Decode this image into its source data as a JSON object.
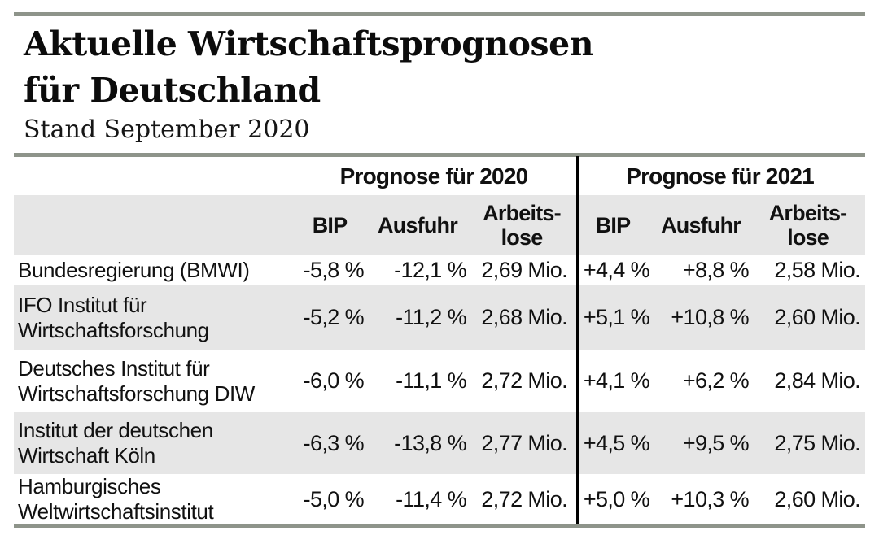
{
  "header": {
    "title_line1": "Aktuelle Wirtschaftsprognosen",
    "title_line2": "für Deutschland",
    "subtitle": "Stand September 2020"
  },
  "table_headers": {
    "group_2020": "Prognose für 2020",
    "group_2021": "Prognose für 2021",
    "bip": "BIP",
    "ausfuhr": "Ausfuhr",
    "arbeitslose": "Arbeits-\nlose"
  },
  "chart_data": {
    "type": "table",
    "title": "Aktuelle Wirtschaftsprognosen für Deutschland",
    "subtitle": "Stand September 2020",
    "column_groups": [
      "Prognose für 2020",
      "Prognose für 2021"
    ],
    "columns": [
      "BIP",
      "Ausfuhr",
      "Arbeitslose",
      "BIP",
      "Ausfuhr",
      "Arbeitslose"
    ],
    "rows": [
      {
        "institution": "Bundesregierung (BMWI)",
        "values": [
          "-5,8 %",
          "-12,1 %",
          "2,69 Mio.",
          "+4,4 %",
          "+8,8 %",
          "2,58 Mio."
        ]
      },
      {
        "institution": "IFO Institut für\nWirtschaftsforschung",
        "values": [
          "-5,2 %",
          "-11,2 %",
          "2,68 Mio.",
          "+5,1 %",
          "+10,8 %",
          "2,60 Mio."
        ]
      },
      {
        "institution": "Deutsches Institut für\nWirtschaftsforschung DIW",
        "values": [
          "-6,0 %",
          "-11,1 %",
          "2,72 Mio.",
          "+4,1 %",
          "+6,2 %",
          "2,84 Mio."
        ]
      },
      {
        "institution": "Institut der deutschen\nWirtschaft Köln",
        "values": [
          "-6,3 %",
          "-13,8 %",
          "2,77 Mio.",
          "+4,5 %",
          "+9,5 %",
          "2,75 Mio."
        ]
      },
      {
        "institution": "Hamburgisches\nWeltwirtschaftsinstitut",
        "values": [
          "-5,0 %",
          "-11,4 %",
          "2,72 Mio.",
          "+5,0 %",
          "+10,3 %",
          "2,60 Mio."
        ]
      }
    ]
  },
  "colors": {
    "rule": "#8e948a",
    "row_alt": "#e6e6e6",
    "divider": "#000000",
    "text": "#111111"
  }
}
